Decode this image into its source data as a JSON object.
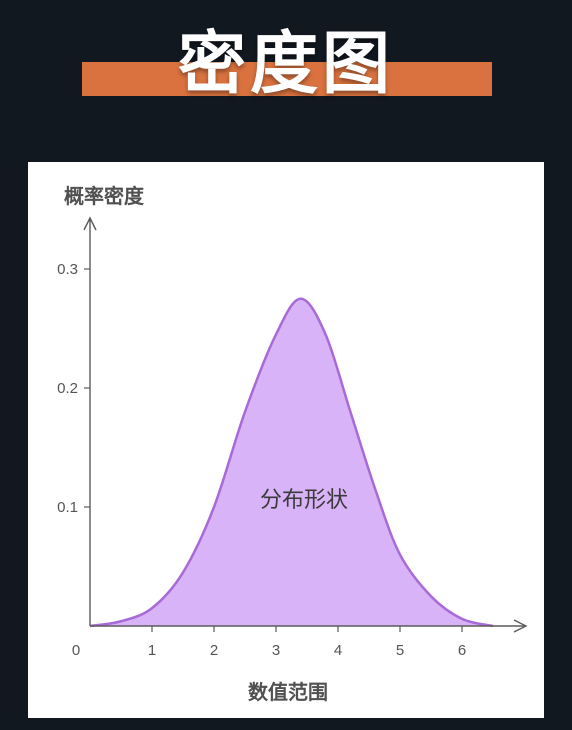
{
  "header": {
    "title": "密度图"
  },
  "colors": {
    "background": "#121820",
    "title_bar": "#d9723f",
    "curve_fill": "#d9b3f7",
    "curve_stroke": "#a86ad6",
    "axis": "#5a5a5a"
  },
  "chart_data": {
    "type": "area",
    "ylabel": "概率密度",
    "xlabel": "数值范围",
    "annotation": "分布形状",
    "x_ticks": [
      "0",
      "1",
      "2",
      "3",
      "4",
      "5",
      "6"
    ],
    "y_ticks": [
      "0.1",
      "0.2",
      "0.3"
    ],
    "xlim": [
      0,
      7
    ],
    "ylim": [
      0,
      0.3
    ],
    "grid": false,
    "series": [
      {
        "x": [
          0,
          0.5,
          1,
          1.5,
          2,
          2.5,
          3,
          3.4,
          3.8,
          4.2,
          4.6,
          5,
          5.5,
          6,
          6.5
        ],
        "values": [
          0,
          0.004,
          0.015,
          0.045,
          0.1,
          0.18,
          0.245,
          0.275,
          0.245,
          0.18,
          0.115,
          0.06,
          0.025,
          0.006,
          0
        ]
      }
    ]
  }
}
